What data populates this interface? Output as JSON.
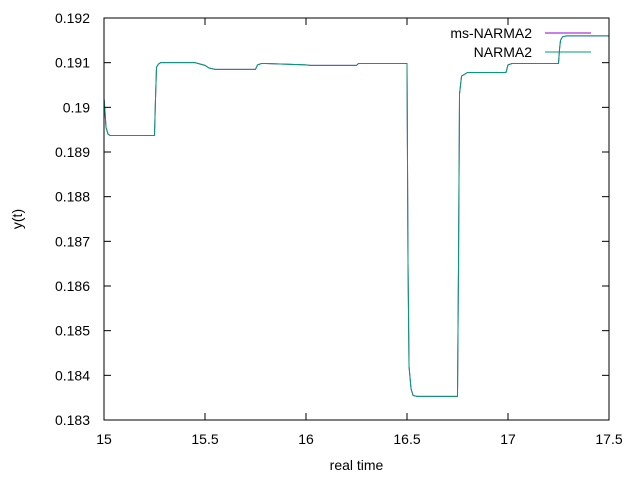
{
  "chart_data": {
    "type": "line",
    "title": "",
    "xlabel": "real time",
    "ylabel": "y(t)",
    "xlim": [
      15,
      17.5
    ],
    "ylim": [
      0.183,
      0.192
    ],
    "xticks": [
      15,
      15.5,
      16,
      16.5,
      17,
      17.5
    ],
    "yticks": [
      0.183,
      0.184,
      0.185,
      0.186,
      0.187,
      0.188,
      0.189,
      0.19,
      0.191,
      0.192
    ],
    "xtick_labels": [
      "15",
      "15.5",
      "16",
      "16.5",
      "17",
      "17.5"
    ],
    "ytick_labels": [
      "0.183",
      "0.184",
      "0.185",
      "0.186",
      "0.187",
      "0.188",
      "0.189",
      "0.19",
      "0.191",
      "0.192"
    ],
    "grid": false,
    "legend_position": "top-right",
    "series": [
      {
        "name": "ms-NARMA2",
        "color": "#9400d3",
        "x": [
          15.0,
          15.005,
          15.01,
          15.02,
          15.03,
          15.05,
          15.1,
          15.25,
          15.255,
          15.26,
          15.27,
          15.28,
          15.3,
          15.45,
          15.5,
          15.52,
          15.55,
          15.75,
          15.76,
          15.78,
          15.8,
          16.0,
          16.02,
          16.25,
          16.26,
          16.5,
          16.505,
          16.51,
          16.52,
          16.53,
          16.55,
          16.6,
          16.75,
          16.755,
          16.76,
          16.77,
          16.8,
          16.99,
          17.0,
          17.02,
          17.05,
          17.25,
          17.255,
          17.26,
          17.27,
          17.29,
          17.5
        ],
        "y": [
          0.1902,
          0.1899,
          0.18955,
          0.1894,
          0.18937,
          0.18937,
          0.18937,
          0.18937,
          0.1902,
          0.1909,
          0.19097,
          0.191,
          0.191,
          0.191,
          0.19094,
          0.19088,
          0.19085,
          0.19085,
          0.19095,
          0.19098,
          0.19098,
          0.19095,
          0.19094,
          0.19094,
          0.19098,
          0.19098,
          0.1865,
          0.1842,
          0.1837,
          0.18355,
          0.18353,
          0.18353,
          0.18353,
          0.1865,
          0.1903,
          0.1907,
          0.19078,
          0.19078,
          0.19095,
          0.19098,
          0.19098,
          0.19098,
          0.1913,
          0.1915,
          0.19158,
          0.1916,
          0.1916
        ]
      },
      {
        "name": "NARMA2",
        "color": "#009e73",
        "x": [
          15.0,
          15.005,
          15.01,
          15.02,
          15.03,
          15.05,
          15.1,
          15.25,
          15.255,
          15.26,
          15.27,
          15.28,
          15.3,
          15.45,
          15.5,
          15.52,
          15.55,
          15.75,
          15.76,
          15.78,
          15.8,
          16.0,
          16.02,
          16.25,
          16.26,
          16.5,
          16.505,
          16.51,
          16.52,
          16.53,
          16.55,
          16.6,
          16.75,
          16.755,
          16.76,
          16.77,
          16.8,
          16.99,
          17.0,
          17.02,
          17.05,
          17.25,
          17.255,
          17.26,
          17.27,
          17.29,
          17.5
        ],
        "y": [
          0.1902,
          0.1899,
          0.18955,
          0.1894,
          0.18937,
          0.18937,
          0.18937,
          0.18937,
          0.1902,
          0.1909,
          0.19097,
          0.191,
          0.191,
          0.191,
          0.19094,
          0.19088,
          0.19085,
          0.19085,
          0.19095,
          0.19098,
          0.19098,
          0.19095,
          0.19094,
          0.19094,
          0.19098,
          0.19098,
          0.1865,
          0.1842,
          0.1837,
          0.18355,
          0.18353,
          0.18353,
          0.18353,
          0.1865,
          0.1903,
          0.1907,
          0.19078,
          0.19078,
          0.19095,
          0.19098,
          0.19098,
          0.19098,
          0.1913,
          0.1915,
          0.19158,
          0.1916,
          0.1916
        ]
      }
    ]
  }
}
